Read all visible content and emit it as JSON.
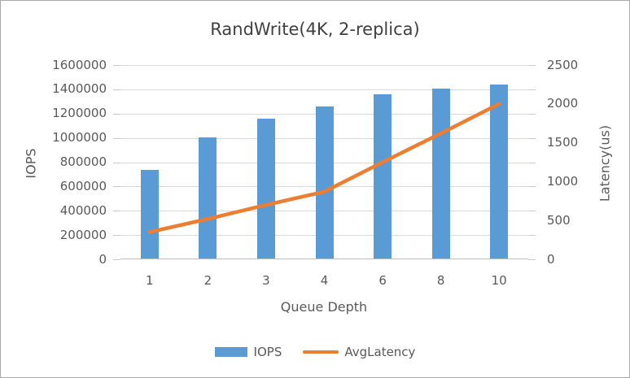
{
  "chart_data": {
    "type": "bar-line-combo",
    "title": "RandWrite(4K, 2-replica)",
    "categories": [
      "1",
      "2",
      "3",
      "4",
      "6",
      "8",
      "10"
    ],
    "xlabel": "Queue Depth",
    "left_axis": {
      "label": "IOPS",
      "min": 0,
      "max": 1600000,
      "step": 200000,
      "tick_labels": [
        "1600000",
        "1400000",
        "1200000",
        "1000000",
        "800000",
        "600000",
        "400000",
        "200000",
        "0"
      ]
    },
    "right_axis": {
      "label": "Latency(us)",
      "min": 0,
      "max": 2500,
      "step": 500,
      "tick_labels": [
        "2500",
        "2000",
        "1500",
        "1000",
        "500",
        "0"
      ]
    },
    "series": [
      {
        "name": "IOPS",
        "type": "bar",
        "axis": "left",
        "color": "#5B9BD5",
        "values": [
          730000,
          1000000,
          1150000,
          1250000,
          1350000,
          1400000,
          1430000
        ]
      },
      {
        "name": "AvgLatency",
        "type": "line",
        "axis": "right",
        "color": "#ED7D31",
        "values": [
          350,
          520,
          700,
          870,
          1250,
          1620,
          2000
        ]
      }
    ],
    "grid": true,
    "grid_color": "#D9D9D9",
    "axis_line_color": "#BFBFBF",
    "text_color": "#595959",
    "title_color": "#404040",
    "legend_position": "bottom"
  }
}
